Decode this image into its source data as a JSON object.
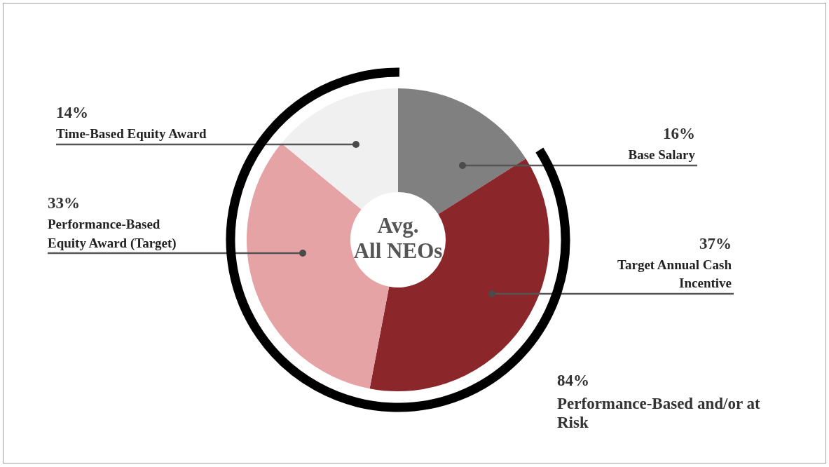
{
  "chart_data": {
    "type": "donut",
    "title": "Avg. All NEOs",
    "categories": [
      "Base Salary",
      "Target Annual Cash Incentive",
      "Performance-Based Equity Award (Target)",
      "Time-Based Equity Award"
    ],
    "values": [
      16,
      37,
      33,
      14
    ],
    "colors": [
      "#808080",
      "#8b272b",
      "#e5a3a5",
      "#f0f0f0"
    ],
    "value_labels": [
      "16%",
      "37%",
      "33%",
      "14%"
    ],
    "annotations": [
      "84%",
      "Performance-Based and/or at Risk"
    ]
  }
}
